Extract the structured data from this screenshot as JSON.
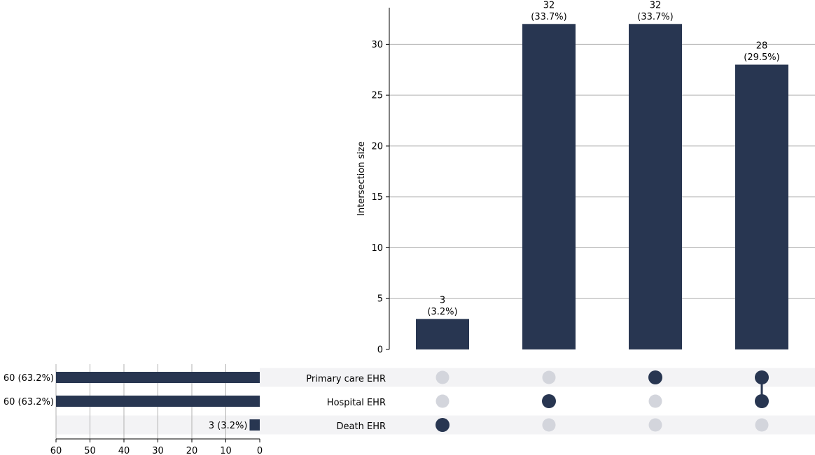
{
  "colors": {
    "bar": "#283651",
    "dot_active": "#283651",
    "dot_inactive": "#d3d5dc",
    "stripe": "#f3f3f5",
    "grid": "#b0b0b0"
  },
  "chart_data": {
    "type": "upset",
    "y_axis": {
      "label": "Intersection size",
      "ylim": [
        0,
        33.6
      ],
      "ticks": [
        0,
        5,
        10,
        15,
        20,
        25,
        30
      ]
    },
    "intersections": [
      {
        "value": 3,
        "label_count": "3",
        "label_pct": "(3.2%)",
        "members": [
          "Death EHR"
        ]
      },
      {
        "value": 32,
        "label_count": "32",
        "label_pct": "(33.7%)",
        "members": [
          "Hospital EHR"
        ]
      },
      {
        "value": 32,
        "label_count": "32",
        "label_pct": "(33.7%)",
        "members": [
          "Primary care EHR"
        ]
      },
      {
        "value": 28,
        "label_count": "28",
        "label_pct": "(29.5%)",
        "members": [
          "Primary care EHR",
          "Hospital EHR"
        ]
      }
    ],
    "sets": [
      {
        "name": "Primary care EHR",
        "size": 60,
        "size_label": "60 (63.2%)"
      },
      {
        "name": "Hospital EHR",
        "size": 60,
        "size_label": "60 (63.2%)"
      },
      {
        "name": "Death EHR",
        "size": 3,
        "size_label": "3 (3.2%)"
      }
    ],
    "set_size_axis": {
      "xlim": [
        60,
        0
      ],
      "ticks": [
        60,
        50,
        40,
        30,
        20,
        10,
        0
      ]
    }
  }
}
